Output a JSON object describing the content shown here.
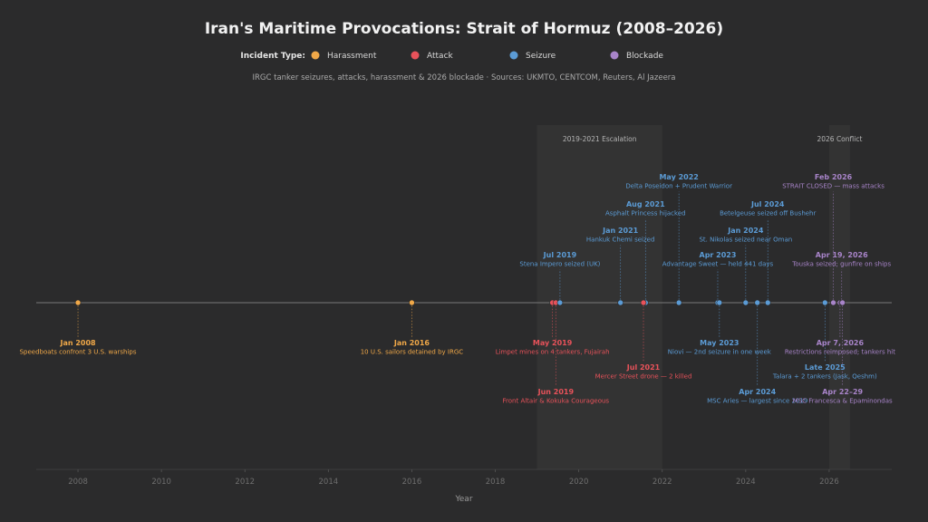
{
  "chart_data": {
    "type": "scatter",
    "title": "Iran's Maritime Provocations: Strait of Hormuz (2008–2026)",
    "subtitle": "IRGC tanker seizures, attacks, harassment & 2026 blockade  ·  Sources: UKMTO, CENTCOM, Reuters, Al Jazeera",
    "xlabel": "Year",
    "xlim": [
      2007.0,
      2027.5
    ],
    "xticks": [
      2008,
      2010,
      2012,
      2014,
      2016,
      2018,
      2020,
      2022,
      2024,
      2026
    ],
    "legend": {
      "title": "Incident Type:",
      "placement": "top-center",
      "items": [
        {
          "name": "Harassment",
          "color": "#f0a848"
        },
        {
          "name": "Attack",
          "color": "#e8525a"
        },
        {
          "name": "Seizure",
          "color": "#5b9bd5"
        },
        {
          "name": "Blockade",
          "color": "#a884c9"
        }
      ]
    },
    "periods": [
      {
        "label": "2019-2021 Escalation",
        "start": 2019.0,
        "end": 2022.0
      },
      {
        "label": "2026 Conflict",
        "start": 2026.0,
        "end": 2026.5
      }
    ],
    "events": [
      {
        "x": 2008.0,
        "type": "Harassment",
        "date": "Jan 2008",
        "desc": "Speedboats confront 3 U.S. warships",
        "side": "below",
        "level": 1
      },
      {
        "x": 2016.0,
        "type": "Harassment",
        "date": "Jan 2016",
        "desc": "10 U.S. sailors detained by IRGC",
        "side": "below",
        "level": 1
      },
      {
        "x": 2019.37,
        "type": "Attack",
        "date": "May 2019",
        "desc": "Limpet mines on 4 tankers, Fujairah",
        "side": "below",
        "level": 1
      },
      {
        "x": 2019.45,
        "type": "Attack",
        "date": "Jun 2019",
        "desc": "Front Altair & Kokuka Courageous",
        "side": "below",
        "level": 3
      },
      {
        "x": 2019.55,
        "type": "Seizure",
        "date": "Jul 2019",
        "desc": "Stena Impero seized (UK)",
        "side": "above",
        "level": 1
      },
      {
        "x": 2021.0,
        "type": "Seizure",
        "date": "Jan 2021",
        "desc": "Hankuk Chemi seized",
        "side": "above",
        "level": 2
      },
      {
        "x": 2021.6,
        "type": "Seizure",
        "date": "Aug 2021",
        "desc": "Asphalt Princess hijacked",
        "side": "above",
        "level": 3
      },
      {
        "x": 2021.55,
        "type": "Attack",
        "date": "Jul 2021",
        "desc": "Mercer Street drone — 2 killed",
        "side": "below",
        "level": 2
      },
      {
        "x": 2022.4,
        "type": "Seizure",
        "date": "May 2022",
        "desc": "Delta Poseidon + Prudent Warrior",
        "side": "above",
        "level": 4
      },
      {
        "x": 2023.33,
        "type": "Seizure",
        "date": "Apr 2023",
        "desc": "Advantage Sweet — held 441 days",
        "side": "above",
        "level": 1
      },
      {
        "x": 2023.37,
        "type": "Seizure",
        "date": "May 2023",
        "desc": "Niovi — 2nd seizure in one week",
        "side": "below",
        "level": 1
      },
      {
        "x": 2024.0,
        "type": "Seizure",
        "date": "Jan 2024",
        "desc": "St. Nikolas seized near Oman",
        "side": "above",
        "level": 2
      },
      {
        "x": 2024.28,
        "type": "Seizure",
        "date": "Apr 2024",
        "desc": "MSC Aries — largest since 2019",
        "side": "below",
        "level": 3
      },
      {
        "x": 2024.53,
        "type": "Seizure",
        "date": "Jul 2024",
        "desc": "Betelgeuse seized off Bushehr",
        "side": "above",
        "level": 3
      },
      {
        "x": 2025.9,
        "type": "Seizure",
        "date": "Late 2025",
        "desc": "Talara + 2 tankers (Jask, Qeshm)",
        "side": "below",
        "level": 2
      },
      {
        "x": 2026.1,
        "type": "Blockade",
        "date": "Feb 2026",
        "desc": "STRAIT CLOSED — mass attacks",
        "side": "above",
        "level": 4
      },
      {
        "x": 2026.26,
        "type": "Blockade",
        "date": "Apr 7, 2026",
        "desc": "Restrictions reimposed; tankers hit",
        "side": "below",
        "level": 1
      },
      {
        "x": 2026.3,
        "type": "Blockade",
        "date": "Apr 19, 2026",
        "desc": "Touska seized; gunfire on ships",
        "side": "above",
        "level": 1
      },
      {
        "x": 2026.32,
        "type": "Blockade",
        "date": "Apr 22–29",
        "desc": "MSC Francesca & Epaminondas",
        "side": "below",
        "level": 3
      }
    ]
  }
}
